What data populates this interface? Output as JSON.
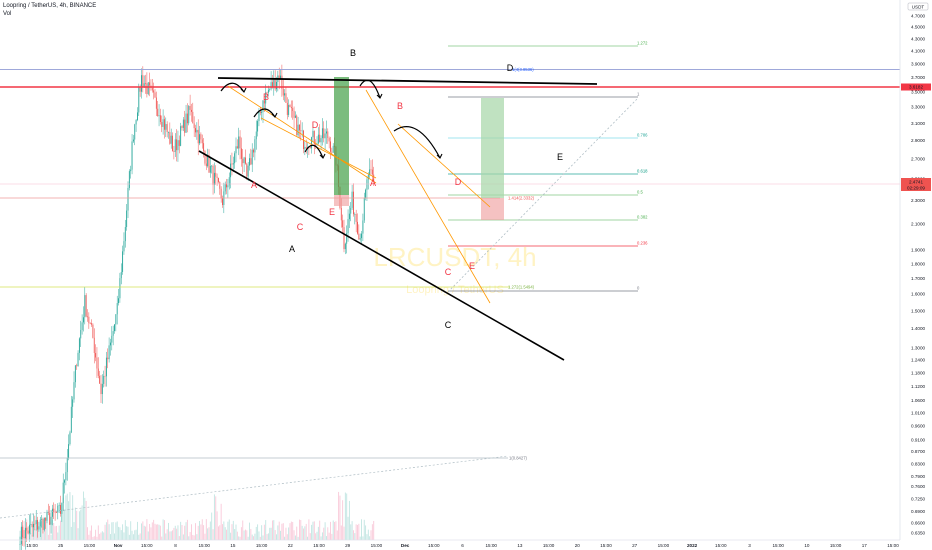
{
  "header": {
    "symbol_line": "Loopring / TetherUS, 4h, BINANCE",
    "vol_label": "Vol"
  },
  "watermark": {
    "symbol": "LRCUSDT, 4h",
    "name": "Loopring / TetherUS"
  },
  "currency_badge": "USDT",
  "price_axis": {
    "labels": [
      "4.9000",
      "4.7000",
      "4.5000",
      "4.3000",
      "4.1000",
      "3.9000",
      "3.7000",
      "3.5000",
      "3.3000",
      "3.1000",
      "2.9000",
      "2.7000",
      "2.5000",
      "2.3000",
      "2.1000",
      "1.9000",
      "1.8000",
      "1.7000",
      "1.6000",
      "1.5000",
      "1.4000",
      "1.3000",
      "1.2400",
      "1.1800",
      "1.1200",
      "1.0600",
      "1.0100",
      "0.9600",
      "0.9100",
      "0.8700",
      "0.8300",
      "0.7900",
      "0.7600",
      "0.7250",
      "0.6900",
      "0.6600",
      "0.6350"
    ],
    "levels": [
      4.9,
      4.7,
      4.5,
      4.3,
      4.1,
      3.9,
      3.7,
      3.5,
      3.3,
      3.1,
      2.9,
      2.7,
      2.5,
      2.3,
      2.1,
      1.9,
      1.8,
      1.7,
      1.6,
      1.5,
      1.4,
      1.3,
      1.24,
      1.18,
      1.12,
      1.06,
      1.01,
      0.96,
      0.91,
      0.87,
      0.83,
      0.79,
      0.76,
      0.725,
      0.69,
      0.66,
      0.635
    ],
    "red_marker": "3.6182",
    "last_price": "2.4741",
    "countdown": "02:29:09"
  },
  "time_axis": {
    "labels": [
      "15:00",
      "25",
      "15:00",
      "Nov",
      "15:00",
      "8",
      "15:00",
      "15",
      "15:00",
      "22",
      "15:00",
      "29",
      "15:00",
      "Dec",
      "15:00",
      "6",
      "15:00",
      "13",
      "15:00",
      "20",
      "15:00",
      "27",
      "15:00",
      "2022",
      "15:00",
      "3",
      "15:00",
      "10",
      "15:00",
      "17",
      "15:00"
    ],
    "bold": [
      "Nov",
      "Dec",
      "2022"
    ]
  },
  "wave_labels": {
    "major": [
      "A",
      "B",
      "C",
      "D",
      "E"
    ],
    "minor_first": [
      "A",
      "B",
      "C",
      "D",
      "E"
    ],
    "minor_second": [
      "A",
      "B",
      "C",
      "D",
      "E"
    ]
  },
  "fib_levels": [
    {
      "label": "1.272",
      "color": "#4caf50"
    },
    {
      "label": "1",
      "color": "#787b86"
    },
    {
      "label": "0.786",
      "color": "#26a69a"
    },
    {
      "label": "0.618",
      "color": "#089981"
    },
    {
      "label": "0.5",
      "color": "#4caf50"
    },
    {
      "label": "0.382",
      "color": "#4caf50"
    },
    {
      "label": "0.236",
      "color": "#f23645"
    },
    {
      "label": "0",
      "color": "#787b86"
    }
  ],
  "trend_labels": {
    "ext_top": "1(4(3.8536)",
    "ext_mid": "1.414(2.3332)",
    "ext_low": "1.272(1.5494)",
    "ext_bottom": "1(0.8427)"
  },
  "colors": {
    "up": "#26a69a",
    "down": "#ef5350",
    "wave_red": "#f23645",
    "orange": "#ff9800",
    "blue": "#2962ff"
  },
  "chart_data": {
    "type": "candlestick",
    "title": "Loopring / TetherUS, 4h, BINANCE",
    "y_scale": "log",
    "ylim": [
      0.62,
      5.0
    ],
    "x": [
      "Oct 25",
      "Nov 1",
      "Nov 8",
      "Nov 15",
      "Nov 22",
      "Nov 29",
      "Dec 6",
      "Dec 13",
      "Dec 20",
      "Dec 27",
      "Jan 3",
      "Jan 10",
      "Jan 17"
    ],
    "price_path": [
      {
        "date": "Oct 26",
        "price": 0.63
      },
      {
        "date": "Oct 31",
        "price": 0.69
      },
      {
        "date": "Nov 1",
        "price": 0.9
      },
      {
        "date": "Nov 2",
        "price": 1.25
      },
      {
        "date": "Nov 3",
        "price": 1.55
      },
      {
        "date": "Nov 4",
        "price": 1.35
      },
      {
        "date": "Nov 5",
        "price": 1.1
      },
      {
        "date": "Nov 6",
        "price": 1.28
      },
      {
        "date": "Nov 7",
        "price": 1.5
      },
      {
        "date": "Nov 8",
        "price": 2.1
      },
      {
        "date": "Nov 9",
        "price": 3.0
      },
      {
        "date": "Nov 10",
        "price": 3.7
      },
      {
        "date": "Nov 11",
        "price": 3.3
      },
      {
        "date": "Nov 13",
        "price": 2.8
      },
      {
        "date": "Nov 15",
        "price": 3.25
      },
      {
        "date": "Nov 17",
        "price": 2.7
      },
      {
        "date": "Nov 19",
        "price": 2.3
      },
      {
        "date": "Nov 21",
        "price": 2.9
      },
      {
        "date": "Nov 22",
        "price": 2.5
      },
      {
        "date": "Nov 24",
        "price": 3.4
      },
      {
        "date": "Nov 26",
        "price": 3.75
      },
      {
        "date": "Nov 27",
        "price": 3.3
      },
      {
        "date": "Nov 29",
        "price": 2.9
      },
      {
        "date": "Dec 2",
        "price": 2.95
      },
      {
        "date": "Dec 3",
        "price": 2.7
      },
      {
        "date": "Dec 4",
        "price": 1.95
      },
      {
        "date": "Dec 5",
        "price": 2.3
      },
      {
        "date": "Dec 6",
        "price": 2.0
      },
      {
        "date": "Dec 7",
        "price": 2.55
      },
      {
        "date": "Dec 8",
        "price": 2.47
      }
    ]
  }
}
